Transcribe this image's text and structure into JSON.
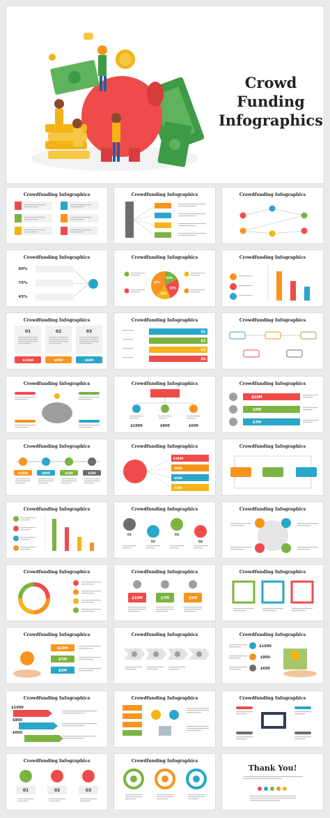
{
  "hero": {
    "title": "Crowd\nFunding\nInfographics"
  },
  "thumbnails": [
    {
      "title": "Crowdfunding Infographics",
      "layout": "list4"
    },
    {
      "title": "Crowdfunding Infographics",
      "layout": "steps"
    },
    {
      "title": "Crowdfunding Infographics",
      "layout": "network"
    },
    {
      "title": "Crowdfunding Infographics",
      "layout": "percent",
      "values": [
        "60%",
        "75%",
        "45%"
      ]
    },
    {
      "title": "Crowdfunding Infographics",
      "layout": "pie",
      "values": [
        "20%",
        "30%",
        "20%",
        "45%"
      ]
    },
    {
      "title": "Crowdfunding Infographics",
      "layout": "bars2"
    },
    {
      "title": "Crowdfunding Infographics",
      "layout": "cards",
      "nums": [
        "01",
        "02",
        "03"
      ],
      "amounts": [
        "$1000",
        "$800",
        "$600"
      ]
    },
    {
      "title": "Crowdfunding Infographics",
      "layout": "rows",
      "nums": [
        "01",
        "02",
        "03",
        "04"
      ]
    },
    {
      "title": "Crowdfunding Infographics",
      "layout": "flow"
    },
    {
      "title": "Crowdfunding Infographics",
      "layout": "piggy"
    },
    {
      "title": "Crowdfunding Infographics",
      "layout": "tree",
      "amounts": [
        "$1000",
        "$800",
        "$600"
      ]
    },
    {
      "title": "Crowdfunding Infographics",
      "layout": "money",
      "amounts": [
        "$10M",
        "$5M",
        "$7M"
      ]
    },
    {
      "title": "Crowdfunding Infographics",
      "layout": "timeline",
      "amounts": [
        "$1000",
        "$800",
        "$600",
        "$200"
      ]
    },
    {
      "title": "Crowdfunding Infographics",
      "layout": "hub",
      "amounts": [
        "$1000",
        "$800",
        "$600",
        "$200"
      ]
    },
    {
      "title": "Crowdfunding Infographics",
      "layout": "boxes"
    },
    {
      "title": "Crowdfunding Infographics",
      "layout": "vbars"
    },
    {
      "title": "Crowdfunding Infographics",
      "layout": "circles4",
      "nums": [
        "01",
        "02",
        "03",
        "04"
      ]
    },
    {
      "title": "Crowdfunding Infographics",
      "layout": "cycle"
    },
    {
      "title": "Crowdfunding Infographics",
      "layout": "donut"
    },
    {
      "title": "Crowdfunding Infographics",
      "layout": "tiles",
      "amounts": [
        "$10M",
        "$7M",
        "$5M"
      ]
    },
    {
      "title": "Crowdfunding Infographics",
      "layout": "frames"
    },
    {
      "title": "Crowdfunding Infographics",
      "layout": "hand",
      "amounts": [
        "$10M",
        "$7M",
        "$5M"
      ]
    },
    {
      "title": "Crowdfunding Infographics",
      "layout": "chevrons"
    },
    {
      "title": "Crowdfunding Infographics",
      "layout": "hand2",
      "amounts": [
        "$1000",
        "$800",
        "$600"
      ]
    },
    {
      "title": "Crowdfunding Infographics",
      "layout": "arrows",
      "amounts": [
        "$1000",
        "$800",
        "$600"
      ]
    },
    {
      "title": "Crowdfunding Infographics",
      "layout": "people"
    },
    {
      "title": "Crowdfunding Infographics",
      "layout": "monitor"
    },
    {
      "title": "Crowdfunding Infographics",
      "layout": "icons3",
      "nums": [
        "01",
        "02",
        "03"
      ]
    },
    {
      "title": "Crowdfunding Infographics",
      "layout": "medals"
    },
    {
      "title": "Thank You!",
      "layout": "thanks"
    }
  ],
  "colors": {
    "red": "#ef4b4b",
    "orange": "#f7941d",
    "yellow": "#f5b316",
    "green": "#7cb342",
    "teal": "#2aa6c9",
    "gray": "#6d6d6d"
  }
}
